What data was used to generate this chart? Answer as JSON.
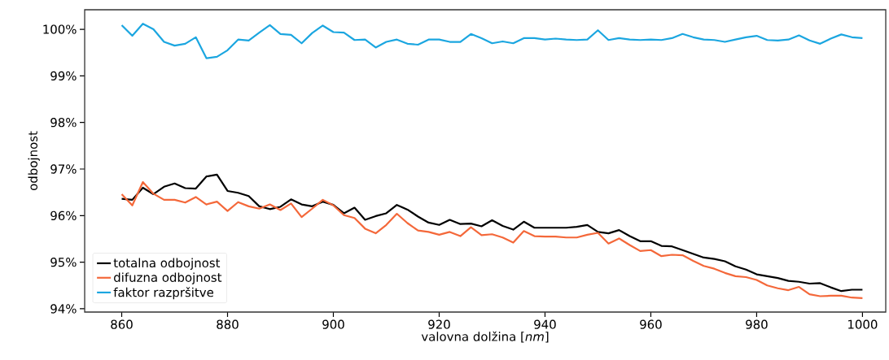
{
  "chart_data": {
    "type": "line",
    "xlabel": "valovna dolžina [*nm*]",
    "ylabel": "odbojnost",
    "xlim": [
      853,
      1004.4
    ],
    "ylim": [
      93.93,
      100.42
    ],
    "xticks": [
      860,
      880,
      900,
      920,
      940,
      960,
      980,
      1000
    ],
    "yticks": [
      {
        "value": 94,
        "label": "94%"
      },
      {
        "value": 95,
        "label": "95%"
      },
      {
        "value": 96,
        "label": "96%"
      },
      {
        "value": 97,
        "label": "97%"
      },
      {
        "value": 98,
        "label": "98%"
      },
      {
        "value": 99,
        "label": "99%"
      },
      {
        "value": 100,
        "label": "100%"
      }
    ],
    "x": [
      860,
      862,
      864,
      866,
      868,
      870,
      872,
      874,
      876,
      878,
      880,
      882,
      884,
      886,
      888,
      890,
      892,
      894,
      896,
      898,
      900,
      902,
      904,
      906,
      908,
      910,
      912,
      914,
      916,
      918,
      920,
      922,
      924,
      926,
      928,
      930,
      932,
      934,
      936,
      938,
      940,
      942,
      944,
      946,
      948,
      950,
      952,
      954,
      956,
      958,
      960,
      962,
      964,
      966,
      968,
      970,
      972,
      974,
      976,
      978,
      980,
      982,
      984,
      986,
      988,
      990,
      992,
      994,
      996,
      998,
      1000
    ],
    "legend": "bottom left",
    "grid": false,
    "marker": "none",
    "line_style": "solid",
    "series": [
      {
        "name": "totalna odbojnost",
        "color": "#000000",
        "values": [
          96.36,
          96.34,
          96.6,
          96.46,
          96.62,
          96.69,
          96.59,
          96.58,
          96.84,
          96.88,
          96.53,
          96.49,
          96.42,
          96.2,
          96.14,
          96.19,
          96.35,
          96.24,
          96.2,
          96.3,
          96.23,
          96.05,
          96.17,
          95.91,
          95.99,
          96.05,
          96.23,
          96.13,
          95.98,
          95.85,
          95.8,
          95.91,
          95.82,
          95.83,
          95.77,
          95.9,
          95.78,
          95.7,
          95.87,
          95.74,
          95.74,
          95.74,
          95.74,
          95.76,
          95.8,
          95.65,
          95.62,
          95.69,
          95.56,
          95.45,
          95.45,
          95.35,
          95.34,
          95.26,
          95.18,
          95.1,
          95.07,
          95.02,
          94.91,
          94.84,
          94.74,
          94.7,
          94.66,
          94.6,
          94.58,
          94.54,
          94.55,
          94.46,
          94.38,
          94.41,
          94.41
        ]
      },
      {
        "name": "difuzna odbojnost",
        "color": "#f4683a",
        "values": [
          96.46,
          96.22,
          96.72,
          96.47,
          96.34,
          96.34,
          96.28,
          96.4,
          96.24,
          96.3,
          96.1,
          96.29,
          96.2,
          96.15,
          96.24,
          96.12,
          96.26,
          95.97,
          96.15,
          96.34,
          96.22,
          96.01,
          95.95,
          95.72,
          95.62,
          95.8,
          96.04,
          95.84,
          95.68,
          95.65,
          95.59,
          95.65,
          95.56,
          95.75,
          95.58,
          95.6,
          95.53,
          95.42,
          95.67,
          95.56,
          95.55,
          95.55,
          95.53,
          95.53,
          95.59,
          95.63,
          95.4,
          95.51,
          95.37,
          95.24,
          95.26,
          95.13,
          95.16,
          95.15,
          95.03,
          94.92,
          94.86,
          94.77,
          94.7,
          94.68,
          94.62,
          94.5,
          94.44,
          94.4,
          94.47,
          94.31,
          94.27,
          94.28,
          94.28,
          94.24,
          94.23
        ]
      },
      {
        "name": "faktor razpršitve",
        "color": "#1ba6e0",
        "values": [
          100.09,
          99.86,
          100.12,
          100.0,
          99.73,
          99.65,
          99.69,
          99.83,
          99.38,
          99.41,
          99.55,
          99.78,
          99.76,
          99.93,
          100.09,
          99.9,
          99.88,
          99.7,
          99.92,
          100.08,
          99.94,
          99.93,
          99.77,
          99.78,
          99.61,
          99.73,
          99.78,
          99.69,
          99.67,
          99.78,
          99.78,
          99.73,
          99.73,
          99.9,
          99.81,
          99.7,
          99.74,
          99.7,
          99.81,
          99.81,
          99.78,
          99.8,
          99.78,
          99.77,
          99.78,
          99.98,
          99.77,
          99.81,
          99.78,
          99.77,
          99.78,
          99.77,
          99.81,
          99.9,
          99.83,
          99.78,
          99.77,
          99.73,
          99.78,
          99.83,
          99.86,
          99.77,
          99.76,
          99.78,
          99.87,
          99.76,
          99.69,
          99.8,
          99.89,
          99.83,
          99.81
        ]
      }
    ]
  }
}
